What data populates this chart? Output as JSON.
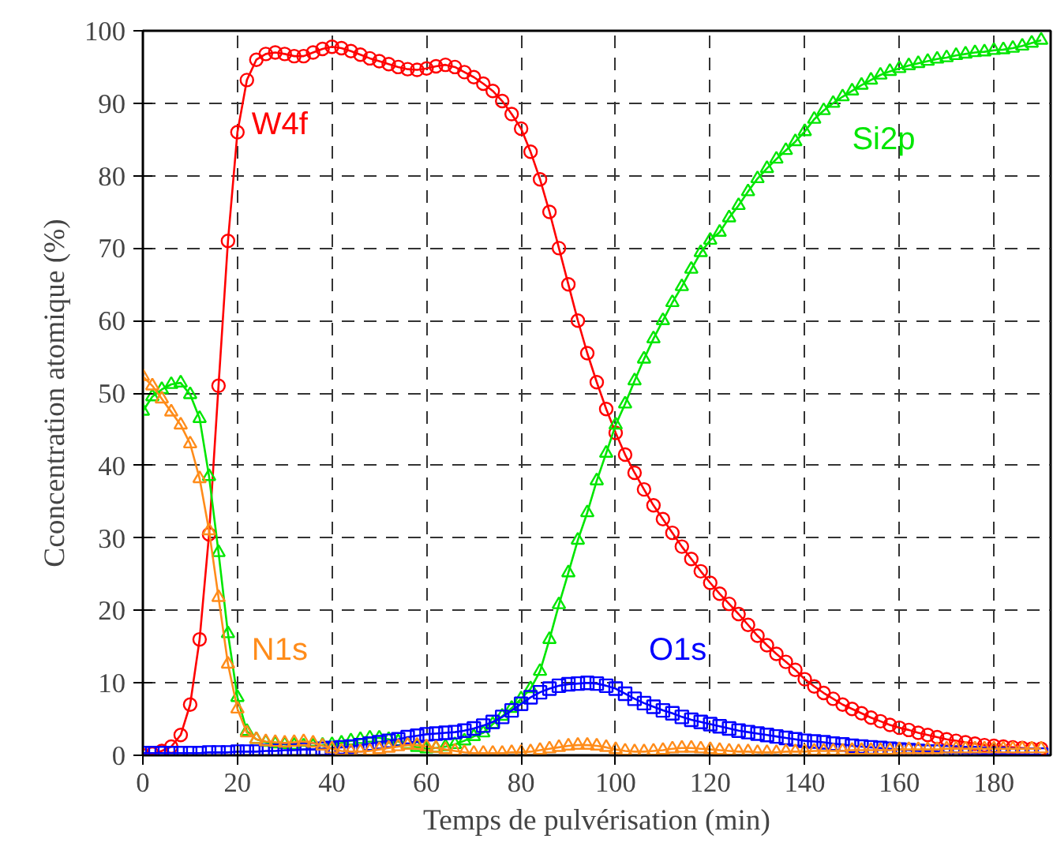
{
  "chart_data": {
    "type": "line",
    "xlabel": "Temps de pulvérisation (min)",
    "ylabel": "Cconcentration atomique (%)",
    "xlim": [
      0,
      192
    ],
    "xticks": [
      0,
      20,
      40,
      60,
      80,
      100,
      120,
      140,
      160,
      180
    ],
    "ylim": [
      0,
      100
    ],
    "yticks": [
      0,
      10,
      20,
      30,
      40,
      50,
      60,
      70,
      80,
      90,
      100
    ],
    "grid": true,
    "line_style": "solid",
    "x": [
      0,
      2,
      4,
      6,
      8,
      10,
      12,
      14,
      16,
      18,
      20,
      22,
      24,
      26,
      28,
      30,
      32,
      34,
      36,
      38,
      40,
      42,
      44,
      46,
      48,
      50,
      52,
      54,
      56,
      58,
      60,
      62,
      64,
      66,
      68,
      70,
      72,
      74,
      76,
      78,
      80,
      82,
      84,
      86,
      88,
      90,
      92,
      94,
      96,
      98,
      100,
      102,
      104,
      106,
      108,
      110,
      112,
      114,
      116,
      118,
      120,
      122,
      124,
      126,
      128,
      130,
      132,
      134,
      136,
      138,
      140,
      142,
      144,
      146,
      148,
      150,
      152,
      154,
      156,
      158,
      160,
      162,
      164,
      166,
      168,
      170,
      172,
      174,
      176,
      178,
      180,
      182,
      184,
      186,
      188,
      190
    ],
    "series": [
      {
        "name": "W4f",
        "color": "#ff0000",
        "marker": "circle",
        "values": [
          0,
          0.2,
          0.6,
          1.2,
          2.8,
          7,
          16,
          30.5,
          51,
          71,
          86,
          93.2,
          96,
          96.8,
          97,
          96.8,
          96.5,
          96.5,
          97,
          97.5,
          97.8,
          97.6,
          97.2,
          96.7,
          96.2,
          95.8,
          95.4,
          95,
          94.7,
          94.6,
          94.8,
          95.1,
          95.3,
          95,
          94.3,
          93.6,
          92.7,
          91.7,
          90.3,
          88.5,
          86.5,
          83.3,
          79.5,
          75,
          70,
          65,
          60,
          55.5,
          51.5,
          47.8,
          44.5,
          41.5,
          39,
          36.7,
          34.5,
          32.6,
          30.7,
          28.8,
          27.1,
          25.4,
          23.8,
          22.3,
          20.9,
          19.5,
          18,
          16.5,
          15.2,
          14,
          12.9,
          11.8,
          10.5,
          9.5,
          8.6,
          7.8,
          7,
          6.4,
          5.8,
          5.2,
          4.7,
          4.2,
          3.8,
          3.5,
          3.1,
          2.8,
          2.5,
          2.2,
          2,
          1.8,
          1.6,
          1.4,
          1.3,
          1.2,
          1.1,
          1,
          0.9,
          0.9
        ]
      },
      {
        "name": "Si2p",
        "color": "#00e600",
        "marker": "triangle",
        "values": [
          47.5,
          49.5,
          50.5,
          51.2,
          51.4,
          49.8,
          46.5,
          38.5,
          28,
          16.8,
          8,
          3.3,
          2.2,
          1.8,
          1.6,
          1.5,
          1.4,
          1.3,
          1.3,
          1.4,
          1.5,
          1.7,
          2,
          2.2,
          2.4,
          2.4,
          2.2,
          1.9,
          1.5,
          1.1,
          0.9,
          1,
          1.2,
          1.5,
          2,
          2.6,
          3.1,
          4.3,
          5.4,
          6.5,
          7.8,
          9.2,
          11.6,
          16,
          20.8,
          25.2,
          29.7,
          33.5,
          37.9,
          41.7,
          45.6,
          48.5,
          51.7,
          54.7,
          57.5,
          60,
          62.5,
          64.7,
          67.1,
          69.4,
          71.1,
          72.2,
          74.2,
          75.9,
          77.8,
          79.6,
          81,
          82.3,
          83.5,
          84.7,
          86.1,
          87.8,
          89,
          90,
          90.9,
          91.7,
          92.5,
          93.2,
          93.9,
          94.4,
          94.8,
          95.2,
          95.5,
          95.8,
          96.1,
          96.3,
          96.6,
          96.8,
          97,
          97.1,
          97.3,
          97.4,
          97.6,
          97.9,
          98.3,
          98.7
        ]
      },
      {
        "name": "O1s",
        "color": "#0000ff",
        "marker": "square",
        "values": [
          0.3,
          0.3,
          0.3,
          0.3,
          0.3,
          0.3,
          0.3,
          0.4,
          0.4,
          0.4,
          0.5,
          0.5,
          0.5,
          0.6,
          0.6,
          0.7,
          0.7,
          0.8,
          0.8,
          0.9,
          1,
          1.1,
          1.2,
          1.4,
          1.6,
          1.8,
          2,
          2.2,
          2.5,
          2.7,
          2.9,
          3,
          3.1,
          3.2,
          3.4,
          3.7,
          4.1,
          4.6,
          5.3,
          6.2,
          7.1,
          8,
          8.7,
          9.2,
          9.6,
          9.8,
          9.9,
          10,
          9.9,
          9.6,
          9.2,
          8.5,
          7.8,
          7.2,
          6.7,
          6.2,
          5.8,
          5.3,
          4.9,
          4.6,
          4.3,
          4,
          3.7,
          3.4,
          3.2,
          3,
          2.8,
          2.6,
          2.4,
          2.2,
          2.0,
          1.9,
          1.8,
          1.6,
          1.5,
          1.3,
          1.2,
          1.1,
          1,
          0.9,
          0.8,
          0.7,
          0.6,
          0.5,
          0.5,
          0.4,
          0.4,
          0.3,
          0.3,
          0.2,
          0.2,
          0.2,
          0.1,
          0.1,
          0.1,
          0.1
        ]
      },
      {
        "name": "N1s",
        "color": "#ff8c1a",
        "marker": "triangle",
        "values": [
          52.3,
          51,
          49.2,
          47.4,
          45.6,
          43,
          38.2,
          31,
          21.8,
          12.6,
          6.4,
          3.1,
          2.2,
          1.9,
          1.8,
          1.7,
          1.8,
          1.9,
          1.7,
          1.3,
          0.9,
          0.6,
          0.5,
          0.5,
          0.6,
          0.8,
          1,
          1.2,
          1.4,
          1.4,
          1.2,
          1,
          0.8,
          0.6,
          0.4,
          0.3,
          0.3,
          0.3,
          0.3,
          0.4,
          0.4,
          0.5,
          0.7,
          0.9,
          1.1,
          1.3,
          1.4,
          1.4,
          1.3,
          1.1,
          0.8,
          0.6,
          0.5,
          0.5,
          0.6,
          0.7,
          0.9,
          1,
          1,
          0.9,
          0.8,
          0.7,
          0.6,
          0.5,
          0.5,
          0.4,
          0.4,
          0.4,
          0.5,
          0.5,
          0.5,
          0.6,
          0.6,
          0.6,
          0.6,
          0.7,
          0.7,
          0.7,
          0.7,
          0.7,
          0.8,
          0.8,
          0.8,
          0.8,
          0.8,
          0.9,
          0.9,
          0.9,
          0.9,
          0.9,
          0.9,
          0.9,
          0.9,
          0.9,
          0.9,
          0.9
        ]
      }
    ]
  }
}
